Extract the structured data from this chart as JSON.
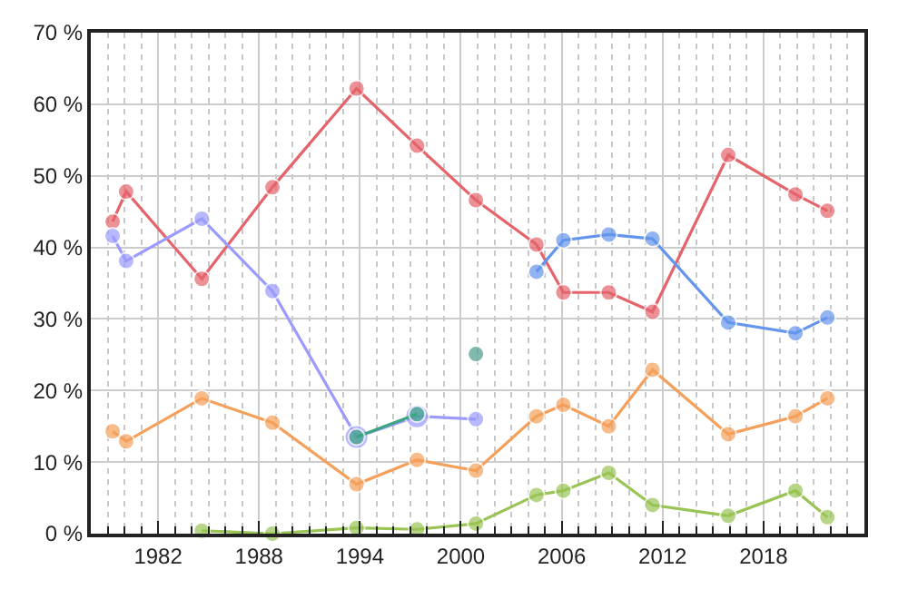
{
  "chart_data": {
    "type": "line",
    "marker": "circle",
    "grid": true,
    "xlim": [
      1978,
      2024
    ],
    "xticks": [
      1982,
      1988,
      1994,
      2000,
      2006,
      2012,
      2018
    ],
    "ylim": [
      0,
      70
    ],
    "yticks": [
      {
        "value": 0,
        "label": "0 %"
      },
      {
        "value": 10,
        "label": "10 %"
      },
      {
        "value": 20,
        "label": "20 %"
      },
      {
        "value": 30,
        "label": "30 %"
      },
      {
        "value": 40,
        "label": "40 %"
      },
      {
        "value": 50,
        "label": "50 %"
      },
      {
        "value": 60,
        "label": "60 %"
      },
      {
        "value": 70,
        "label": "70 %"
      }
    ],
    "series": [
      {
        "color": "#e5636b",
        "x": [
          1979.3,
          1980.1,
          1984.6,
          1988.8,
          1993.8,
          1997.4,
          2000.9,
          2004.5,
          2006.1,
          2008.8,
          2011.4,
          2015.9,
          2019.9,
          2021.8
        ],
        "values": [
          43.6,
          47.8,
          35.6,
          48.4,
          62.2,
          54.2,
          46.6,
          40.4,
          33.7,
          33.7,
          31.0,
          52.9,
          47.4,
          45.1
        ]
      },
      {
        "color": "#9b9bff",
        "x": [
          1979.3,
          1980.1,
          1984.6,
          1988.8,
          1993.8,
          1997.4,
          2000.9
        ],
        "values": [
          41.6,
          38.1,
          44.0,
          33.9,
          13.5,
          16.4,
          16.0
        ]
      },
      {
        "color": "#3aa57f",
        "x": [
          1993.8,
          1997.4
        ],
        "values": [
          13.5,
          16.7
        ]
      },
      {
        "color": "#4d9c8c",
        "type": "scatter",
        "x": [
          2000.9
        ],
        "values": [
          25.1
        ]
      },
      {
        "color": "#f5a05a",
        "x": [
          1979.3,
          1980.1,
          1984.6,
          1988.8,
          1993.8,
          1997.4,
          2000.9,
          2004.5,
          2006.1,
          2008.8,
          2011.4,
          2015.9,
          2019.9,
          2021.8
        ],
        "values": [
          14.3,
          12.9,
          18.9,
          15.5,
          6.9,
          10.3,
          8.8,
          16.4,
          18.0,
          15.0,
          22.9,
          13.9,
          16.4,
          18.9
        ]
      },
      {
        "color": "#99c454",
        "x": [
          1984.6,
          1988.8,
          1993.8,
          1997.4,
          2000.9,
          2004.5,
          2006.1,
          2008.8,
          2011.4,
          2015.9,
          2019.9,
          2021.8
        ],
        "values": [
          0.4,
          0.0,
          0.8,
          0.6,
          1.4,
          5.4,
          6.0,
          8.5,
          4.0,
          2.5,
          6.0,
          2.3
        ]
      },
      {
        "color": "#6495ed",
        "x": [
          2004.5,
          2006.1,
          2008.8,
          2011.4,
          2015.9,
          2019.9,
          2021.8
        ],
        "values": [
          36.6,
          41.0,
          41.8,
          41.2,
          29.5,
          28.0,
          30.2
        ]
      }
    ]
  }
}
